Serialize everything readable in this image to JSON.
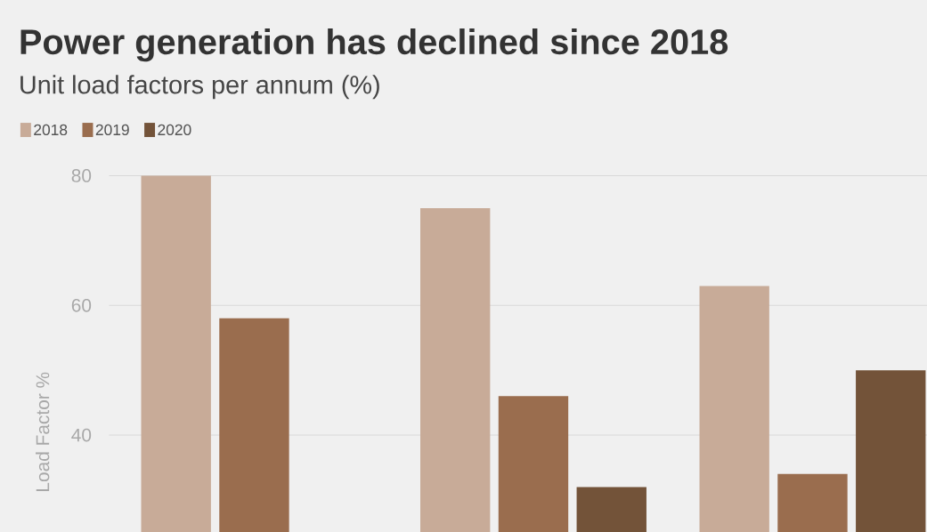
{
  "chart_data": {
    "type": "bar",
    "title": "Power generation has declined since 2018",
    "subtitle": "Unit load factors per annum (%)",
    "ylabel": "Load Factor %",
    "categories": [
      null,
      null,
      null
    ],
    "series": [
      {
        "name": "2018",
        "color": "#c8ab98",
        "values": [
          80,
          75,
          63
        ]
      },
      {
        "name": "2019",
        "color": "#9a6d4e",
        "values": [
          58,
          46,
          34
        ]
      },
      {
        "name": "2020",
        "color": "#735339",
        "values": [
          null,
          32,
          50
        ]
      }
    ],
    "ylim": [
      25,
      80
    ],
    "yticks": [
      40,
      60,
      80
    ],
    "grid": "y",
    "legend": "top left",
    "tick_labels": "y"
  }
}
